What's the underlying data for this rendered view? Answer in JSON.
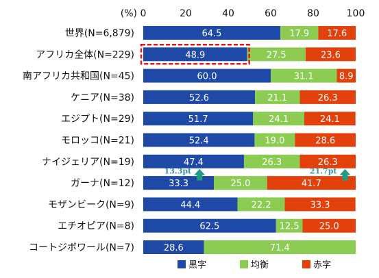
{
  "chart_data": {
    "type": "bar",
    "stacked": true,
    "orientation": "horizontal",
    "unit": "(%)",
    "xlim": [
      0,
      100
    ],
    "xticks": [
      0,
      20,
      40,
      60,
      80,
      100
    ],
    "categories": [
      "世界(N=6,879)",
      "アフリカ全体(N=229)",
      "南アフリカ共和国(N=45)",
      "ケニア(N=38)",
      "エジプト(N=29)",
      "モロッコ(N=21)",
      "ナイジェリア(N=19)",
      "ガーナ(N=12)",
      "モザンビーク(N=9)",
      "エチオピア(N=8)",
      "コートジボワール(N=7)"
    ],
    "series": [
      {
        "name": "黒字",
        "color": "#1f49a7",
        "values": [
          64.5,
          48.9,
          60.0,
          52.6,
          51.7,
          52.4,
          47.4,
          33.3,
          44.4,
          62.5,
          28.6
        ]
      },
      {
        "name": "均衡",
        "color": "#8dcc52",
        "values": [
          17.9,
          27.5,
          31.1,
          21.1,
          24.1,
          19.0,
          26.3,
          25.0,
          22.2,
          12.5,
          71.4
        ]
      },
      {
        "name": "赤字",
        "color": "#e2410c",
        "values": [
          17.6,
          23.6,
          8.9,
          26.3,
          24.1,
          28.6,
          26.3,
          41.7,
          33.3,
          25.0,
          null
        ]
      }
    ],
    "labels": [
      [
        "64.5",
        "17.9",
        "17.6"
      ],
      [
        "48.9",
        "27.5",
        "23.6"
      ],
      [
        "60.0",
        "31.1",
        "8.9"
      ],
      [
        "52.6",
        "21.1",
        "26.3"
      ],
      [
        "51.7",
        "24.1",
        "24.1"
      ],
      [
        "52.4",
        "19.0",
        "28.6"
      ],
      [
        "47.4",
        "26.3",
        "26.3"
      ],
      [
        "33.3",
        "25.0",
        "41.7"
      ],
      [
        "44.4",
        "22.2",
        "33.3"
      ],
      [
        "62.5",
        "12.5",
        "25.0"
      ],
      [
        "28.6",
        "71.4",
        ""
      ]
    ],
    "highlight": {
      "category_index": 1,
      "series_index": 0,
      "style": "red-dashed-box"
    },
    "annotations": [
      {
        "text": "13.3pt",
        "arrow": "up",
        "at_value": 26.5,
        "between_rows": [
          6,
          7
        ],
        "color": "#1e9d84"
      },
      {
        "text": "21.7pt",
        "arrow": "up",
        "at_value": 95.0,
        "between_rows": [
          6,
          7
        ],
        "color": "#1e9d84"
      }
    ],
    "legend": {
      "position": "bottom",
      "entries": [
        "黒字",
        "均衡",
        "赤字"
      ]
    }
  }
}
